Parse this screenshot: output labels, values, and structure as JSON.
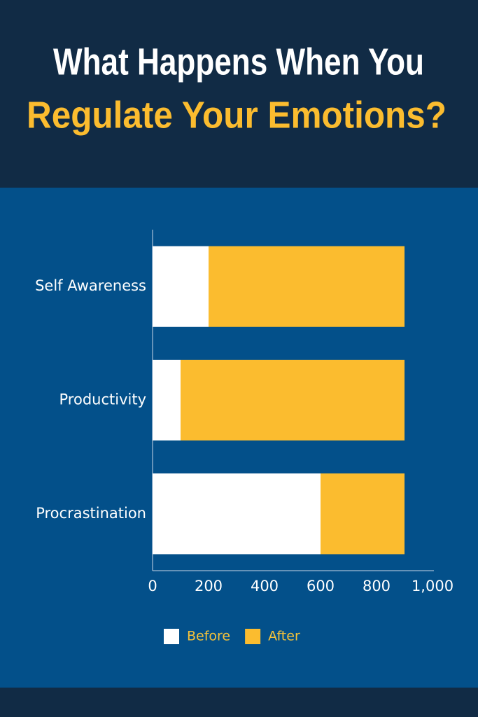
{
  "chart_data": {
    "type": "bar",
    "orientation": "horizontal",
    "stacked": true,
    "title": "What Happens When You",
    "subtitle": "Regulate Your Emotions?",
    "categories": [
      "Self Awareness",
      "Productivity",
      "Procrastination"
    ],
    "series": [
      {
        "name": "Before",
        "color": "#ffffff",
        "values": [
          200,
          100,
          600
        ]
      },
      {
        "name": "After",
        "color": "#fbbc2f",
        "values": [
          700,
          800,
          300
        ]
      }
    ],
    "xlim": [
      0,
      1000
    ],
    "xticks": [
      0,
      200,
      400,
      600,
      800,
      {
        "value": 1000,
        "label": "1,000"
      }
    ],
    "grid": false,
    "legend": "bottom"
  }
}
